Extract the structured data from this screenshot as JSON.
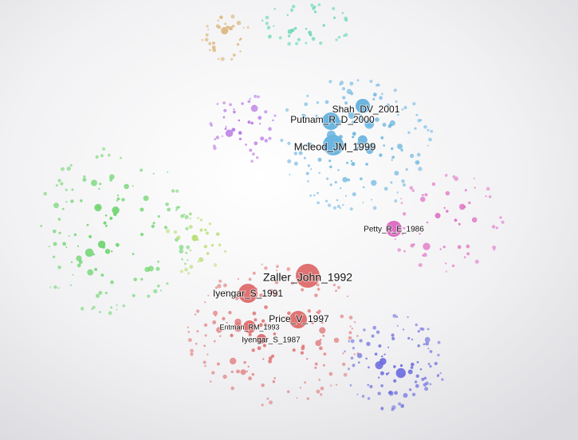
{
  "nodes": [
    {
      "label": "Shah_DV_2001"
    },
    {
      "label": "Putnam_R_D_2000"
    },
    {
      "label": "Mcleod_JM_1999"
    },
    {
      "label": "Petty_R_E_1986"
    },
    {
      "label": "Zaller_John_1992"
    },
    {
      "label": "Iyengar_S_1991"
    },
    {
      "label": "Price_V_1997"
    },
    {
      "label": "Entman_RM_1993"
    },
    {
      "label": "Iyengar_S_1987"
    }
  ]
}
